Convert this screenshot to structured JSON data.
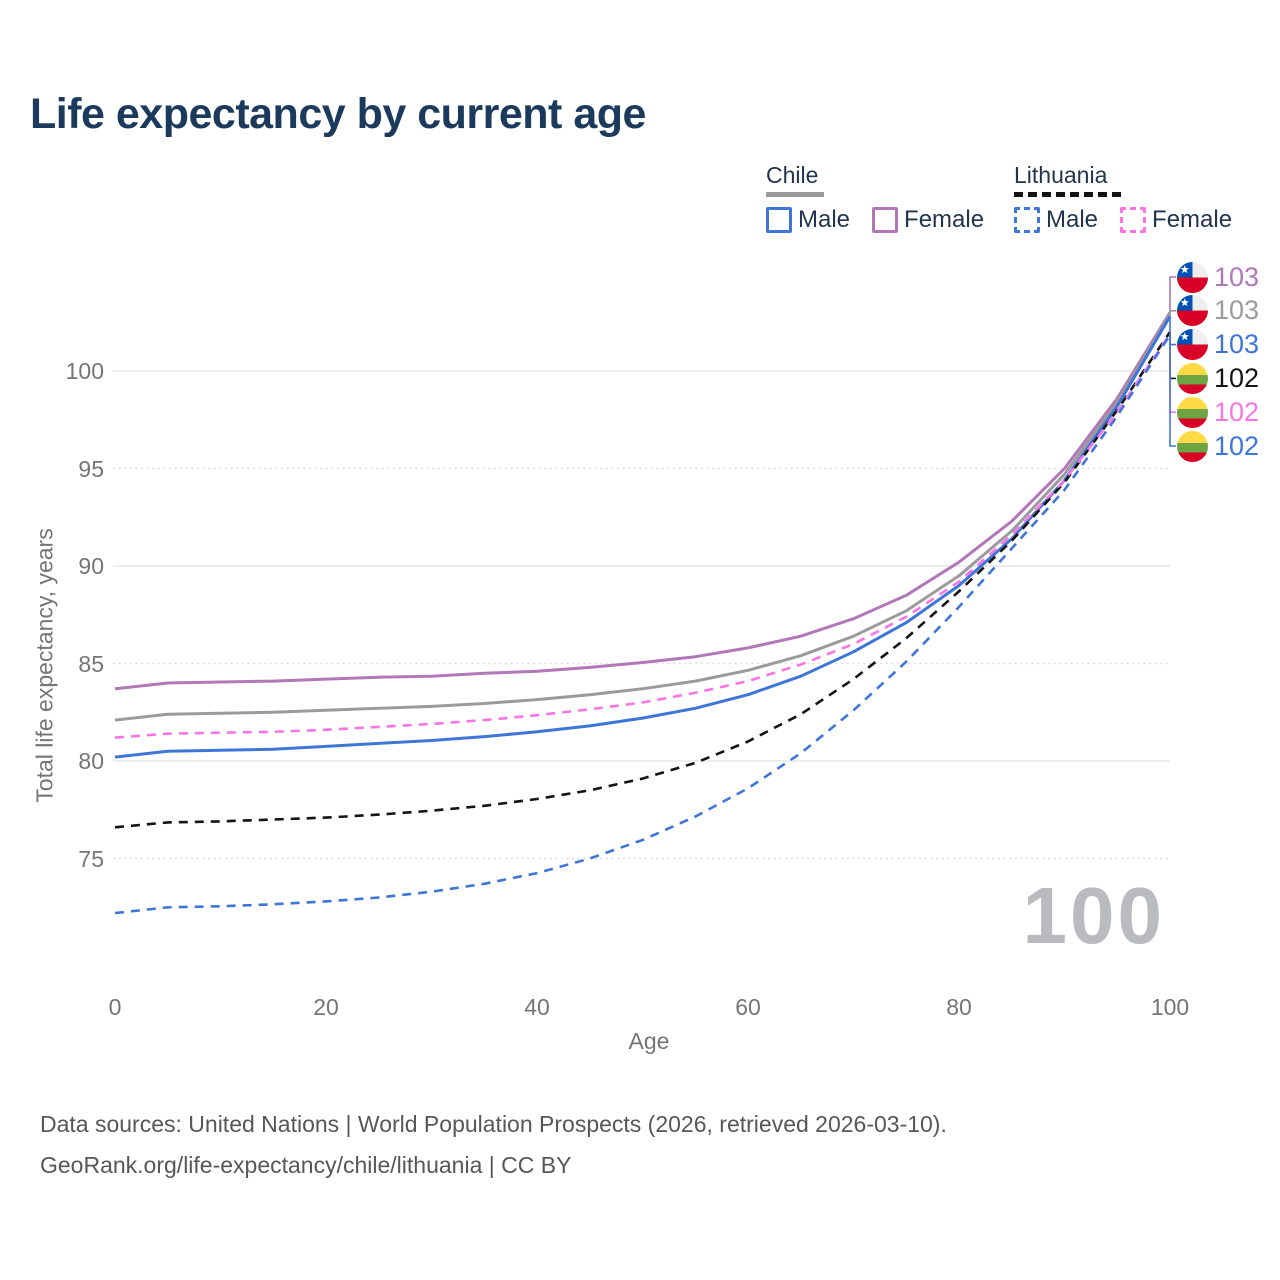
{
  "title": "Life expectancy by current age",
  "legend": {
    "groups": [
      {
        "label": "Chile",
        "line_style": "solid",
        "underline_color": "#9b9b9b",
        "items": [
          {
            "label": "Male",
            "color": "#3e76d8",
            "dash": false
          },
          {
            "label": "Female",
            "color": "#b277b8",
            "dash": false
          }
        ]
      },
      {
        "label": "Lithuania",
        "line_style": "dashed",
        "underline_color": "#141414",
        "items": [
          {
            "label": "Male",
            "color": "#3e76d8",
            "dash": true
          },
          {
            "label": "Female",
            "color": "#fa74e4",
            "dash": true
          }
        ]
      }
    ]
  },
  "watermark": "100",
  "footer": {
    "line1": "Data sources: United Nations | World Population Prospects (2026, retrieved 2026-03-10).",
    "line2": "GeoRank.org/life-expectancy/chile/lithuania | CC BY"
  },
  "chart_data": {
    "type": "line",
    "title": "Life expectancy by current age",
    "xlabel": "Age",
    "ylabel": "Total life expectancy, years",
    "x_ticks": [
      0,
      20,
      40,
      60,
      80,
      100
    ],
    "y_ticks": [
      75,
      80,
      85,
      90,
      95,
      100
    ],
    "xlim": [
      0,
      100
    ],
    "ylim": [
      71.5,
      104.5
    ],
    "grid": "horizontal, solid major every 10 yrs, dotted minor every 5 yrs",
    "legend_position": "top-right",
    "x": [
      0,
      5,
      10,
      15,
      20,
      25,
      30,
      35,
      40,
      45,
      50,
      55,
      60,
      65,
      70,
      75,
      80,
      85,
      90,
      95,
      100
    ],
    "series": [
      {
        "name": "Chile Female",
        "key": "chile-female",
        "color": "#b277b8",
        "dash": "solid",
        "values": [
          83.7,
          84.0,
          84.05,
          84.1,
          84.2,
          84.3,
          84.35,
          84.5,
          84.6,
          84.8,
          85.05,
          85.35,
          85.8,
          86.4,
          87.3,
          88.5,
          90.2,
          92.3,
          95.0,
          98.6,
          103.0
        ]
      },
      {
        "name": "Chile Both sexes",
        "key": "chile-both",
        "color": "#9b9b9b",
        "dash": "solid",
        "values": [
          82.1,
          82.4,
          82.45,
          82.5,
          82.6,
          82.7,
          82.8,
          82.95,
          83.15,
          83.4,
          83.7,
          84.1,
          84.65,
          85.4,
          86.4,
          87.7,
          89.5,
          91.8,
          94.7,
          98.4,
          102.9
        ]
      },
      {
        "name": "Chile Male",
        "key": "chile-male",
        "color": "#3e76d8",
        "dash": "solid",
        "values": [
          80.2,
          80.5,
          80.55,
          80.6,
          80.75,
          80.9,
          81.05,
          81.25,
          81.5,
          81.8,
          82.2,
          82.7,
          83.4,
          84.35,
          85.6,
          87.1,
          89.0,
          91.4,
          94.4,
          98.2,
          102.8
        ]
      },
      {
        "name": "Lithuania Both sexes",
        "key": "lithuania-both",
        "color": "#141414",
        "dash": "dashed",
        "values": [
          76.6,
          76.85,
          76.9,
          77.0,
          77.1,
          77.25,
          77.45,
          77.7,
          78.05,
          78.5,
          79.1,
          79.9,
          81.0,
          82.4,
          84.2,
          86.3,
          88.7,
          91.3,
          94.3,
          98.0,
          102.0
        ]
      },
      {
        "name": "Lithuania Female",
        "key": "lithuania-female",
        "color": "#fa74e4",
        "dash": "dashed",
        "values": [
          81.2,
          81.4,
          81.45,
          81.5,
          81.6,
          81.75,
          81.9,
          82.1,
          82.35,
          82.65,
          83.0,
          83.5,
          84.1,
          84.95,
          86.0,
          87.4,
          89.2,
          91.6,
          94.4,
          97.9,
          101.9
        ]
      },
      {
        "name": "Lithuania Male",
        "key": "lithuania-male",
        "color": "#3e76d8",
        "dash": "dashed",
        "values": [
          72.2,
          72.5,
          72.55,
          72.65,
          72.8,
          73.0,
          73.3,
          73.7,
          74.25,
          75.0,
          75.95,
          77.15,
          78.6,
          80.4,
          82.6,
          85.1,
          87.9,
          90.9,
          93.9,
          97.7,
          101.85
        ]
      }
    ],
    "end_labels": [
      {
        "value": "103",
        "color": "#b277b8",
        "flag": "chile",
        "series": "Chile Female"
      },
      {
        "value": "103",
        "color": "#9b9b9b",
        "flag": "chile",
        "series": "Chile Both sexes"
      },
      {
        "value": "103",
        "color": "#3e76d8",
        "flag": "chile",
        "series": "Chile Male"
      },
      {
        "value": "102",
        "color": "#141414",
        "flag": "lithuania",
        "series": "Lithuania Both sexes"
      },
      {
        "value": "102",
        "color": "#fa74e4",
        "flag": "lithuania",
        "series": "Lithuania Female"
      },
      {
        "value": "102",
        "color": "#3e76d8",
        "flag": "lithuania",
        "series": "Lithuania Male"
      }
    ]
  }
}
